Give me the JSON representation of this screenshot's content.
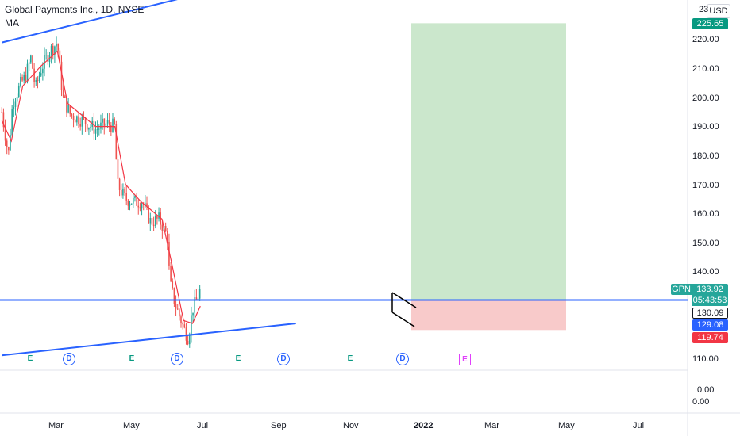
{
  "header": {
    "title": "Global Payments Inc., 1D, NYSE",
    "indicator": "MA"
  },
  "price_scale": {
    "currency": "USD",
    "labels": [
      "220.00",
      "210.00",
      "200.00",
      "190.00",
      "180.00",
      "170.00",
      "160.00",
      "150.00",
      "140.00",
      "110.00"
    ],
    "lower_pane_labels": [
      "0.00",
      "0.00"
    ],
    "top_label_partial": "23"
  },
  "time_scale": {
    "labels": [
      "Mar",
      "May",
      "Jul",
      "Sep",
      "Nov",
      "2022",
      "Mar",
      "May",
      "Jul"
    ]
  },
  "price_tags": {
    "target": "225.65",
    "symbol": "GPN",
    "current": "133.92",
    "countdown": "05:43:53",
    "entry": "130.09",
    "support": "129.08",
    "stop": "119.74"
  },
  "events": [
    "E",
    "D",
    "E",
    "D",
    "E",
    "D",
    "E",
    "D",
    "E"
  ],
  "colors": {
    "up": "#26a69a",
    "down": "#ef5350",
    "ma": "#f23645",
    "trendline": "#2962ff",
    "profit_zone": "#c8e6c9",
    "loss_zone": "#f8c7c7",
    "stop_tag": "#f23645",
    "support_tag": "#2962ff"
  },
  "chart_data": {
    "type": "candlestick",
    "symbol": "GPN",
    "timeframe": "1D",
    "y_range": [
      108,
      230
    ],
    "x_labels": [
      "Mar",
      "May",
      "Jul",
      "Sep",
      "Nov",
      "2022",
      "Mar",
      "May",
      "Jul"
    ],
    "close_approx": [
      {
        "date": "2021-01-25",
        "close": 195
      },
      {
        "date": "2021-02-05",
        "close": 180
      },
      {
        "date": "2021-02-12",
        "close": 198
      },
      {
        "date": "2021-02-26",
        "close": 205
      },
      {
        "date": "2021-03-05",
        "close": 207
      },
      {
        "date": "2021-03-15",
        "close": 214
      },
      {
        "date": "2021-03-22",
        "close": 203
      },
      {
        "date": "2021-04-01",
        "close": 210
      },
      {
        "date": "2021-04-15",
        "close": 216
      },
      {
        "date": "2021-04-28",
        "close": 219
      },
      {
        "date": "2021-05-07",
        "close": 200
      },
      {
        "date": "2021-05-20",
        "close": 194
      },
      {
        "date": "2021-06-10",
        "close": 192
      },
      {
        "date": "2021-07-01",
        "close": 189
      },
      {
        "date": "2021-07-20",
        "close": 191
      },
      {
        "date": "2021-08-02",
        "close": 190
      },
      {
        "date": "2021-08-06",
        "close": 170
      },
      {
        "date": "2021-08-20",
        "close": 165
      },
      {
        "date": "2021-09-03",
        "close": 164
      },
      {
        "date": "2021-09-17",
        "close": 164
      },
      {
        "date": "2021-10-01",
        "close": 157
      },
      {
        "date": "2021-10-15",
        "close": 158
      },
      {
        "date": "2021-10-29",
        "close": 152
      },
      {
        "date": "2021-11-02",
        "close": 136
      },
      {
        "date": "2021-11-12",
        "close": 128
      },
      {
        "date": "2021-11-26",
        "close": 120
      },
      {
        "date": "2021-12-03",
        "close": 117
      },
      {
        "date": "2021-12-10",
        "close": 127
      },
      {
        "date": "2021-12-17",
        "close": 130
      },
      {
        "date": "2021-12-23",
        "close": 133.92
      }
    ],
    "moving_average_approx": [
      {
        "date": "2021-01-25",
        "value": 192
      },
      {
        "date": "2021-02-10",
        "value": 185
      },
      {
        "date": "2021-03-01",
        "value": 204
      },
      {
        "date": "2021-04-01",
        "value": 211
      },
      {
        "date": "2021-04-28",
        "value": 216
      },
      {
        "date": "2021-05-15",
        "value": 198
      },
      {
        "date": "2021-07-01",
        "value": 190
      },
      {
        "date": "2021-08-02",
        "value": 190
      },
      {
        "date": "2021-08-20",
        "value": 170
      },
      {
        "date": "2021-09-15",
        "value": 164
      },
      {
        "date": "2021-10-20",
        "value": 158
      },
      {
        "date": "2021-11-05",
        "value": 143
      },
      {
        "date": "2021-11-25",
        "value": 123
      },
      {
        "date": "2021-12-10",
        "value": 122
      },
      {
        "date": "2021-12-23",
        "value": 128
      }
    ],
    "long_position": {
      "entry": 130.09,
      "target": 225.65,
      "stop": 119.74
    },
    "horizontal_line": 130.09,
    "channel_upper": [
      {
        "date": "2021-01-25",
        "value": 219
      },
      {
        "date": "2022-01-14",
        "value": 237
      }
    ],
    "channel_lower": [
      {
        "date": "2021-01-25",
        "value": 111
      },
      {
        "date": "2022-06-01",
        "value": 122
      }
    ]
  }
}
